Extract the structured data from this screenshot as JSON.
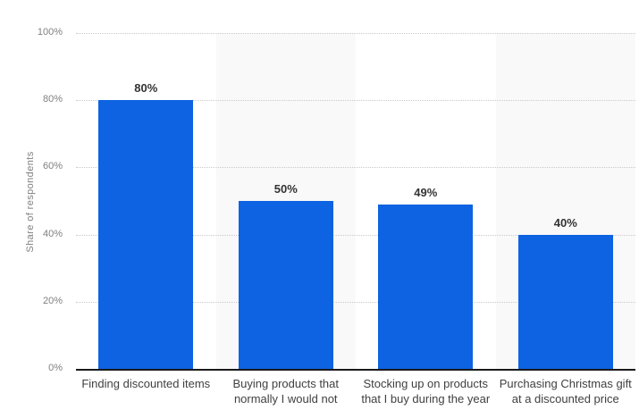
{
  "chart_data": {
    "type": "bar",
    "title": "",
    "xlabel": "",
    "ylabel": "Share of respondents",
    "ylim": [
      0,
      100
    ],
    "yticks": [
      0,
      20,
      40,
      60,
      80,
      100
    ],
    "ytick_labels": [
      "0%",
      "20%",
      "40%",
      "60%",
      "80%",
      "100%"
    ],
    "grid": "horizontal-dotted",
    "legend": "none",
    "plot_background": "alternating vertical column shading behind every second bar",
    "categories": [
      "Finding discounted items",
      "Buying products that normally I would not",
      "Stocking up on products that I buy during the year",
      "Purchasing Christmas gift at a discounted price"
    ],
    "category_lines": [
      [
        "Finding discounted items"
      ],
      [
        "Buying products that",
        "normally I would not"
      ],
      [
        "Stocking up on products",
        "that I buy during the year"
      ],
      [
        "Purchasing Christmas gift",
        "at a discounted price"
      ]
    ],
    "values": [
      80,
      50,
      49,
      40
    ],
    "value_labels": [
      "80%",
      "50%",
      "49%",
      "40%"
    ],
    "colors": {
      "bar": "#0d63e1",
      "band_shade": "#f9f9f9",
      "band_plain": "#ffffff",
      "gridline": "#c9c9c9",
      "axis_line": "#1a1a1a",
      "tick_text": "#808080",
      "value_text": "#333333",
      "category_text": "#404040",
      "background": "#ffffff"
    }
  }
}
